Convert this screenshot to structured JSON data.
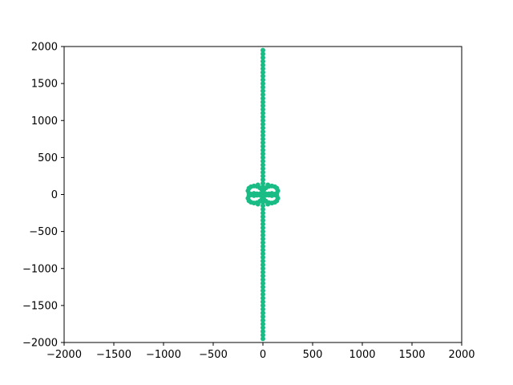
{
  "chart_data": {
    "type": "scatter",
    "title": "",
    "xlabel": "",
    "ylabel": "",
    "xlim": [
      -2000,
      2000
    ],
    "ylim": [
      -2000,
      2000
    ],
    "x_ticks": [
      -2000,
      -1500,
      -1000,
      -500,
      0,
      500,
      1000,
      1500,
      2000
    ],
    "y_ticks": [
      -2000,
      -1500,
      -1000,
      -500,
      0,
      500,
      1000,
      1500,
      2000
    ],
    "x_tick_labels": [
      "−2000",
      "−1500",
      "−1000",
      "−500",
      "0",
      "500",
      "1000",
      "1500",
      "2000"
    ],
    "y_tick_labels": [
      "−2000",
      "−1500",
      "−1000",
      "−500",
      "0",
      "500",
      "1000",
      "1500",
      "2000"
    ],
    "grid": false,
    "color": "#1abc85",
    "series": [
      {
        "points": [
          [
            0,
            1950
          ],
          [
            0,
            1900
          ],
          [
            0,
            1850
          ],
          [
            0,
            1800
          ],
          [
            0,
            1750
          ],
          [
            0,
            1700
          ],
          [
            0,
            1650
          ],
          [
            0,
            1600
          ],
          [
            0,
            1550
          ],
          [
            0,
            1500
          ],
          [
            0,
            1450
          ],
          [
            0,
            1400
          ],
          [
            0,
            1350
          ],
          [
            0,
            1300
          ],
          [
            0,
            1250
          ],
          [
            0,
            1200
          ],
          [
            0,
            1150
          ],
          [
            0,
            1100
          ],
          [
            0,
            1050
          ],
          [
            0,
            1000
          ],
          [
            0,
            950
          ],
          [
            0,
            900
          ],
          [
            0,
            850
          ],
          [
            0,
            800
          ],
          [
            0,
            750
          ],
          [
            0,
            700
          ],
          [
            0,
            650
          ],
          [
            0,
            600
          ],
          [
            0,
            550
          ],
          [
            0,
            500
          ],
          [
            0,
            450
          ],
          [
            0,
            400
          ],
          [
            0,
            350
          ],
          [
            0,
            300
          ],
          [
            0,
            250
          ],
          [
            0,
            200
          ],
          [
            0,
            150
          ],
          [
            0,
            -150
          ],
          [
            0,
            -200
          ],
          [
            0,
            -250
          ],
          [
            0,
            -300
          ],
          [
            0,
            -350
          ],
          [
            0,
            -400
          ],
          [
            0,
            -450
          ],
          [
            0,
            -500
          ],
          [
            0,
            -550
          ],
          [
            0,
            -600
          ],
          [
            0,
            -650
          ],
          [
            0,
            -700
          ],
          [
            0,
            -750
          ],
          [
            0,
            -800
          ],
          [
            0,
            -850
          ],
          [
            0,
            -900
          ],
          [
            0,
            -950
          ],
          [
            0,
            -1000
          ],
          [
            0,
            -1050
          ],
          [
            0,
            -1100
          ],
          [
            0,
            -1150
          ],
          [
            0,
            -1200
          ],
          [
            0,
            -1250
          ],
          [
            0,
            -1300
          ],
          [
            0,
            -1350
          ],
          [
            0,
            -1400
          ],
          [
            0,
            -1450
          ],
          [
            0,
            -1500
          ],
          [
            0,
            -1550
          ],
          [
            0,
            -1600
          ],
          [
            0,
            -1650
          ],
          [
            0,
            -1700
          ],
          [
            0,
            -1750
          ],
          [
            0,
            -1800
          ],
          [
            0,
            -1850
          ],
          [
            0,
            -1900
          ],
          [
            0,
            -1950
          ],
          [
            0,
            100
          ],
          [
            0,
            50
          ],
          [
            0,
            0
          ],
          [
            0,
            -50
          ],
          [
            0,
            -100
          ],
          [
            -150,
            50
          ],
          [
            -140,
            85
          ],
          [
            -120,
            105
          ],
          [
            -90,
            115
          ],
          [
            -60,
            110
          ],
          [
            -30,
            90
          ],
          [
            -10,
            65
          ],
          [
            -140,
            15
          ],
          [
            -120,
            -5
          ],
          [
            -90,
            -15
          ],
          [
            -60,
            -10
          ],
          [
            -30,
            10
          ],
          [
            150,
            50
          ],
          [
            140,
            85
          ],
          [
            120,
            105
          ],
          [
            90,
            115
          ],
          [
            60,
            110
          ],
          [
            30,
            90
          ],
          [
            10,
            65
          ],
          [
            140,
            15
          ],
          [
            120,
            -5
          ],
          [
            90,
            -15
          ],
          [
            60,
            -10
          ],
          [
            30,
            10
          ],
          [
            -150,
            -50
          ],
          [
            -140,
            -85
          ],
          [
            -120,
            -105
          ],
          [
            -90,
            -115
          ],
          [
            -60,
            -110
          ],
          [
            -30,
            -90
          ],
          [
            -10,
            -65
          ],
          [
            -140,
            -15
          ],
          [
            -120,
            5
          ],
          [
            -90,
            15
          ],
          [
            -60,
            10
          ],
          [
            -30,
            -10
          ],
          [
            150,
            -50
          ],
          [
            140,
            -85
          ],
          [
            120,
            -105
          ],
          [
            90,
            -115
          ],
          [
            60,
            -110
          ],
          [
            30,
            -90
          ],
          [
            10,
            -65
          ],
          [
            140,
            -15
          ],
          [
            120,
            5
          ],
          [
            90,
            15
          ],
          [
            60,
            10
          ],
          [
            30,
            -10
          ],
          [
            -50,
            130
          ],
          [
            50,
            130
          ],
          [
            -50,
            -130
          ],
          [
            50,
            -130
          ]
        ]
      }
    ]
  }
}
